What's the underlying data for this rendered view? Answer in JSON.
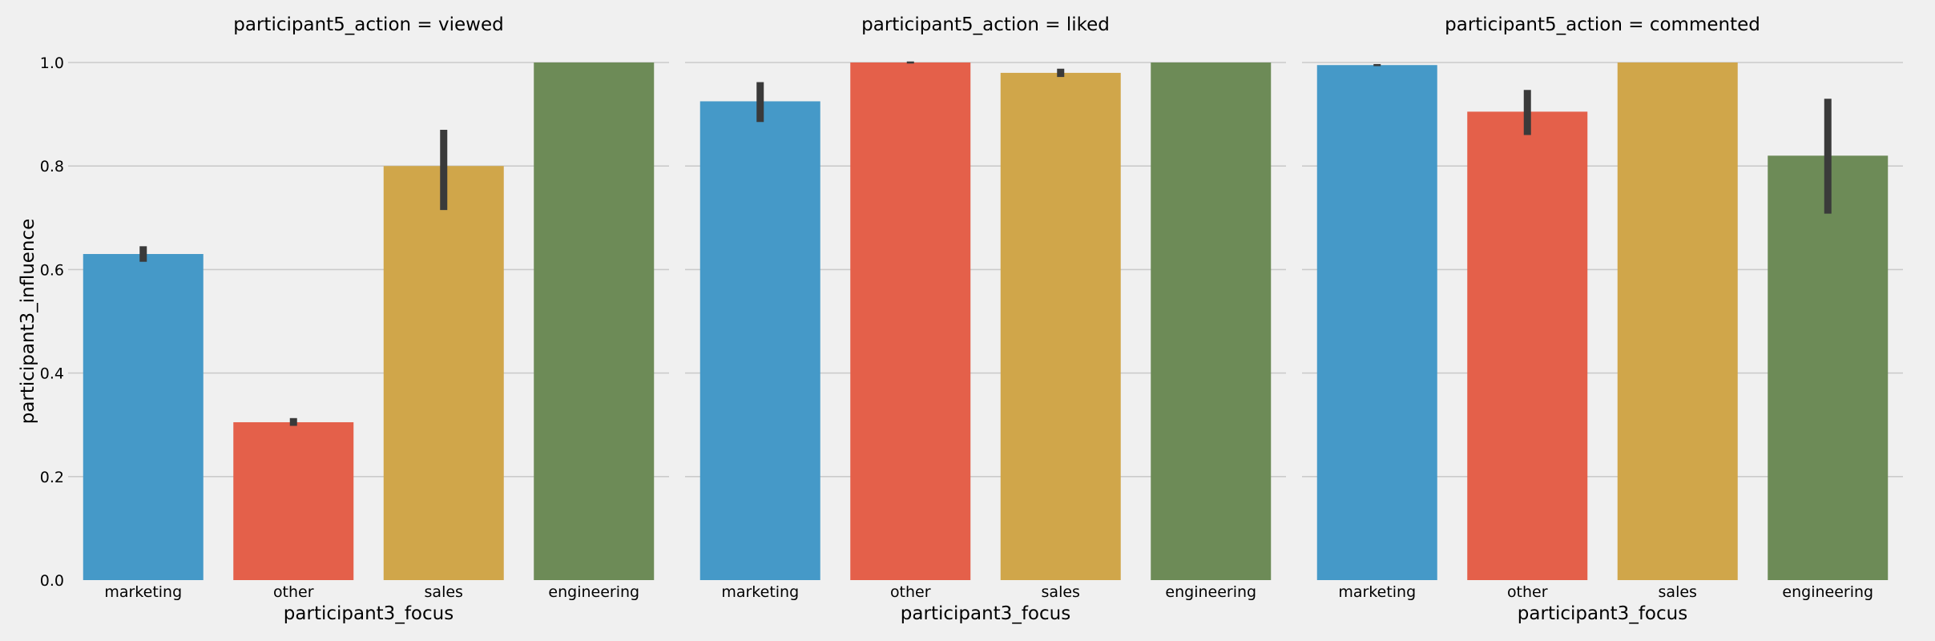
{
  "chart_data": {
    "type": "bar",
    "facet_var": "participant5_action",
    "ylabel": "participant3_influence",
    "ylim": [
      0,
      1.0
    ],
    "yticks": [
      "0.0",
      "0.2",
      "0.4",
      "0.6",
      "0.8",
      "1.0"
    ],
    "grid": true,
    "categories": [
      "marketing",
      "other",
      "sales",
      "engineering"
    ],
    "colors": [
      "#4599c8",
      "#e4604a",
      "#d0a64a",
      "#6d8b57"
    ],
    "panels": [
      {
        "title": "participant5_action = viewed",
        "xlabel": "participant3_focus",
        "values": [
          0.63,
          0.305,
          0.8,
          1.0
        ],
        "err_low": [
          0.615,
          0.298,
          0.715,
          1.0
        ],
        "err_high": [
          0.645,
          0.313,
          0.87,
          1.0
        ]
      },
      {
        "title": "participant5_action = liked",
        "xlabel": "participant3_focus",
        "values": [
          0.925,
          1.0,
          0.98,
          1.0
        ],
        "err_low": [
          0.885,
          0.998,
          0.972,
          1.0
        ],
        "err_high": [
          0.962,
          1.002,
          0.988,
          1.0
        ]
      },
      {
        "title": "participant5_action = commented",
        "xlabel": "participant3_focus",
        "values": [
          0.995,
          0.905,
          1.0,
          0.82
        ],
        "err_low": [
          0.993,
          0.86,
          1.0,
          0.708
        ],
        "err_high": [
          0.997,
          0.947,
          1.0,
          0.93
        ]
      }
    ]
  }
}
